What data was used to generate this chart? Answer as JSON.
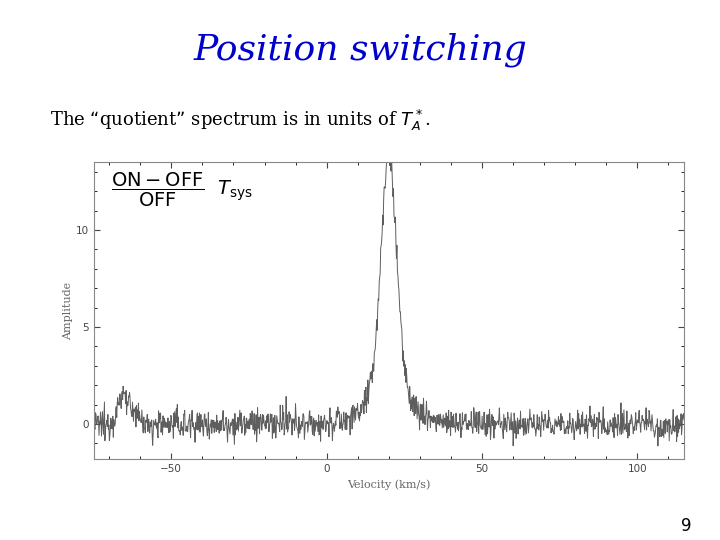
{
  "title": "Position switching",
  "title_color": "#0000cc",
  "title_fontsize": 26,
  "subtitle": "The “quotient” spectrum is in units of $T_A^*$.",
  "background_color": "#ffffff",
  "page_number": "9",
  "spectrum_peak_velocity": 20,
  "spectrum_peak_amplitude": 12.0,
  "spectrum_noise_std": 0.35,
  "xlim": [
    -75,
    115
  ],
  "ylim": [
    -1.8,
    13.5
  ],
  "xticks": [
    -50,
    0,
    50,
    100
  ],
  "yticks": [
    0,
    5,
    10
  ],
  "xlabel": "Velocity (km/s)",
  "ylabel": "Amplitude",
  "inner_bg": "#ffffff",
  "spectrum_color": "#555555",
  "axis_color": "#666666",
  "tick_color": "#444444"
}
